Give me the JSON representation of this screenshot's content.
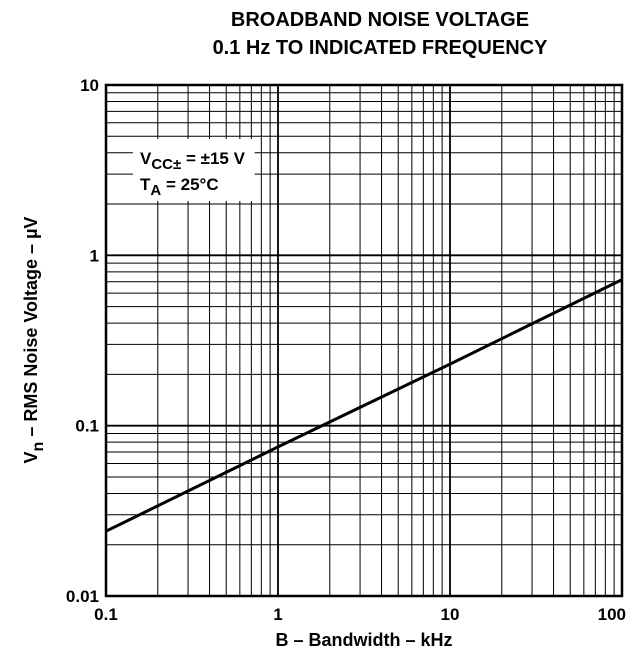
{
  "chart_data": {
    "type": "line",
    "title": "BROADBAND NOISE VOLTAGE",
    "subtitle": "0.1 Hz TO INDICATED FREQUENCY",
    "xlabel": "B – Bandwidth – kHz",
    "ylabel_main": "V",
    "ylabel_sub": "n",
    "ylabel_rest": " – RMS Noise Voltage – µV",
    "xscale": "log",
    "yscale": "log",
    "xlim": [
      0.1,
      100
    ],
    "ylim": [
      0.01,
      10
    ],
    "grid": true,
    "x_ticks": [
      "0.1",
      "1",
      "10",
      "100"
    ],
    "y_ticks": [
      "0.01",
      "0.1",
      "1",
      "10"
    ],
    "x_tick_values": [
      0.1,
      1,
      10,
      100
    ],
    "y_tick_values": [
      0.01,
      0.1,
      1,
      10
    ],
    "series": [
      {
        "x": [
          0.1,
          1,
          10,
          100
        ],
        "y": [
          0.024,
          0.075,
          0.23,
          0.72
        ]
      }
    ],
    "annotation": {
      "line1_main": "V",
      "line1_sub": "CC±",
      "line1_rest": " = ±15 V",
      "line2_main": "T",
      "line2_sub": "A",
      "line2_rest": " = 25°C"
    }
  }
}
